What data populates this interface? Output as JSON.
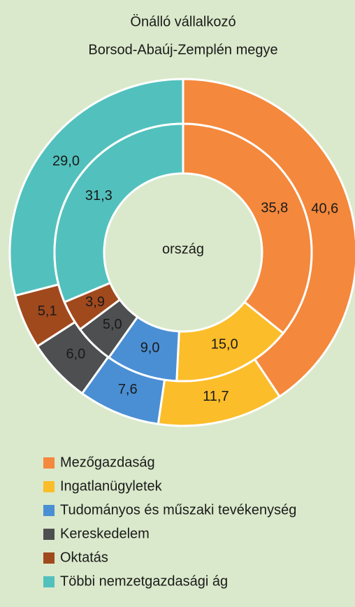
{
  "chart_data": {
    "type": "donut",
    "title": "Önálló vállalkozó",
    "subtitle": "Borsod-Abaúj-Zemplén megye",
    "categories": [
      "Mezőgazdaság",
      "Ingatlanügyletek",
      "Tudományos és műszaki tevékenység",
      "Kereskedelem",
      "Oktatás",
      "Többi nemzetgazdasági ág"
    ],
    "colors": [
      "#f4883c",
      "#fbbd2a",
      "#4a8fd4",
      "#4d4f50",
      "#a0491d",
      "#52c1bd"
    ],
    "series": [
      {
        "values": [
          40.6,
          11.7,
          7.6,
          6.0,
          5.1,
          29.0
        ],
        "value_labels": [
          "40,6",
          "11,7",
          "7,6",
          "6,0",
          "5,1",
          "29,0"
        ]
      },
      {
        "name": "ország",
        "values": [
          35.8,
          15.0,
          9.0,
          5.0,
          3.9,
          31.3
        ],
        "value_labels": [
          "35,8",
          "15,0",
          "9,0",
          "5,0",
          "3,9",
          "31,3"
        ]
      }
    ],
    "legend": "bottom"
  }
}
